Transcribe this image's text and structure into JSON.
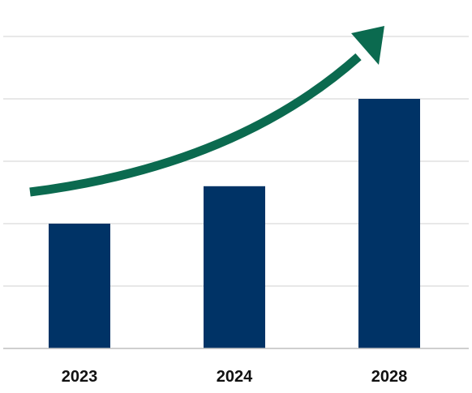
{
  "chart_data": {
    "type": "bar",
    "categories": [
      "2023",
      "2024",
      "2028"
    ],
    "values": [
      2,
      2.6,
      4
    ],
    "ylim": [
      0,
      5
    ],
    "grid": true,
    "legend": "none",
    "annotations": [
      {
        "kind": "trend-arrow",
        "direction": "up-right"
      }
    ],
    "colors": {
      "bar": "#003366",
      "arrow": "#0b6a4f",
      "grid": "#d9d9d9",
      "axis": "#bfbfbf",
      "label": "#111111"
    }
  }
}
